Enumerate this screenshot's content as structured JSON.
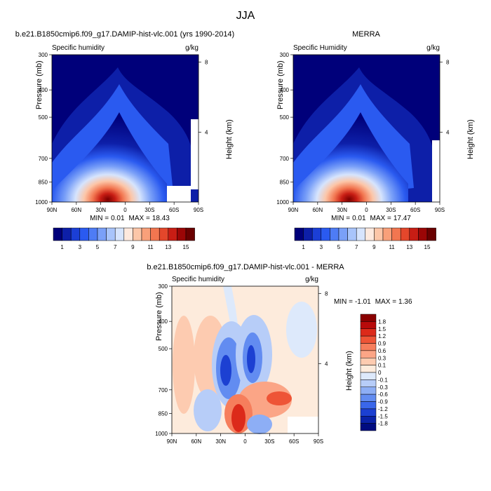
{
  "page_title": "JJA",
  "chart_data": [
    {
      "type": "heatmap",
      "title": "b.e21.B1850cmip6.f09_g17.DAMIP-hist-vlc.001 (yrs 1990-2014)",
      "left_label": "Specific humidity",
      "right_label": "g/kg",
      "xlabel": "",
      "ylabel": "Pressure (mb)",
      "y2label": "Height (km)",
      "x_ticks": [
        "90N",
        "60N",
        "30N",
        "0",
        "30S",
        "60S",
        "90S"
      ],
      "y_ticks": [
        "300",
        "400",
        "500",
        "700",
        "850",
        "1000"
      ],
      "y2_ticks": [
        "8",
        "4"
      ],
      "min_label": "MIN =",
      "min_value": "0.01",
      "max_label": "MAX =",
      "max_value": "18.43",
      "colorbar_labels": [
        "1",
        "3",
        "5",
        "7",
        "9",
        "11",
        "13",
        "15"
      ],
      "colorbar_orientation": "horizontal",
      "colors": [
        "#00007a",
        "#0d1fa8",
        "#1b3fd6",
        "#2a5af0",
        "#4e7cf5",
        "#7aa0f8",
        "#a8c4fb",
        "#d6e4fd",
        "#fde9de",
        "#fcc6a8",
        "#f9a07a",
        "#f27650",
        "#e4472b",
        "#c81d14",
        "#9b0606",
        "#6a0000"
      ]
    },
    {
      "type": "heatmap",
      "title": "MERRA",
      "left_label": "Specific Humidity",
      "right_label": "g/kg",
      "xlabel": "",
      "ylabel": "Pressure (mb)",
      "y2label": "Height (km)",
      "x_ticks": [
        "90N",
        "60N",
        "30N",
        "0",
        "30S",
        "60S",
        "90S"
      ],
      "y_ticks": [
        "300",
        "400",
        "500",
        "700",
        "850",
        "1000"
      ],
      "y2_ticks": [
        "8",
        "4"
      ],
      "min_label": "MIN =",
      "min_value": "0.01",
      "max_label": "MAX =",
      "max_value": "17.47",
      "colorbar_labels": [
        "1",
        "3",
        "5",
        "7",
        "9",
        "11",
        "13",
        "15"
      ],
      "colorbar_orientation": "horizontal"
    },
    {
      "type": "heatmap",
      "title": "b.e21.B1850cmip6.f09_g17.DAMIP-hist-vlc.001 - MERRA",
      "left_label": "Specific humidity",
      "right_label": "g/kg",
      "xlabel": "",
      "ylabel": "Pressure (mb)",
      "y2label": "Height (km)",
      "x_ticks": [
        "90N",
        "60N",
        "30N",
        "0",
        "30S",
        "60S",
        "90S"
      ],
      "y_ticks": [
        "300",
        "400",
        "500",
        "700",
        "850",
        "1000"
      ],
      "y2_ticks": [
        "8",
        "4"
      ],
      "min_label": "MIN =",
      "min_value": "-1.01",
      "max_label": "MAX =",
      "max_value": "1.36",
      "colorbar_labels": [
        "1.8",
        "1.5",
        "1.2",
        "0.9",
        "0.6",
        "0.3",
        "0.1",
        "0",
        "-0.1",
        "-0.3",
        "-0.6",
        "-0.9",
        "-1.2",
        "-1.5",
        "-1.8"
      ],
      "colorbar_orientation": "vertical",
      "colors": [
        "#8a0000",
        "#b80a0a",
        "#dc2a1a",
        "#ee5436",
        "#f67e5c",
        "#fba586",
        "#fdcbb0",
        "#fdebdc",
        "#dde9fb",
        "#b7cdf8",
        "#8daef5",
        "#628cf1",
        "#3a67ea",
        "#1c40d2",
        "#0a22a8",
        "#000c80"
      ]
    }
  ]
}
